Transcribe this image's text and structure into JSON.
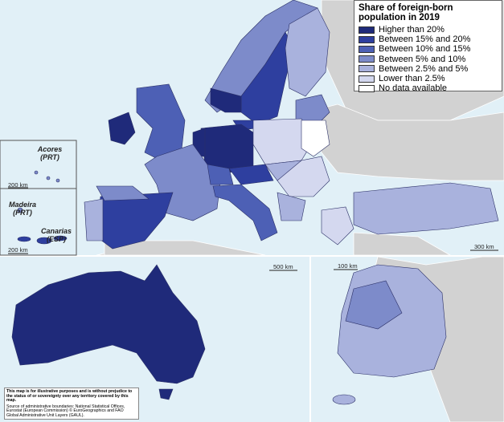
{
  "legend": {
    "title": "Share of foreign-born population in 2019",
    "items": [
      {
        "label": "Higher than 20%",
        "color": "#1f2a7a"
      },
      {
        "label": "Between 15% and 20%",
        "color": "#2e3f9f"
      },
      {
        "label": "Between 10% and 15%",
        "color": "#4d60b5"
      },
      {
        "label": "Between 5% and 10%",
        "color": "#7d8bca"
      },
      {
        "label": "Between 2.5% and 5%",
        "color": "#a9b2dd"
      },
      {
        "label": "Lower than 2.5%",
        "color": "#d4d8ef"
      },
      {
        "label": "No data available",
        "color": "#ffffff"
      }
    ]
  },
  "insets": [
    {
      "name": "Acores",
      "country": "(PRT)",
      "scale": "200 km"
    },
    {
      "name": "Madeira",
      "country": "(PRT)"
    },
    {
      "name": "Canarias",
      "country": "(ESP)",
      "scale": "200 km"
    }
  ],
  "scales": {
    "europe": "300 km",
    "australia": "500 km",
    "korea": "100 km"
  },
  "note": {
    "disclaimer": "This map is for illustrative purposes and is without prejudice to the status of or sovereignty over any territory covered by this map.",
    "source": "Source of administrative boundaries: National Statistical Offices, Eurostat (European Commission) © EuroGeographics and FAO Global Administrative Unit Layers (GAUL)."
  }
}
